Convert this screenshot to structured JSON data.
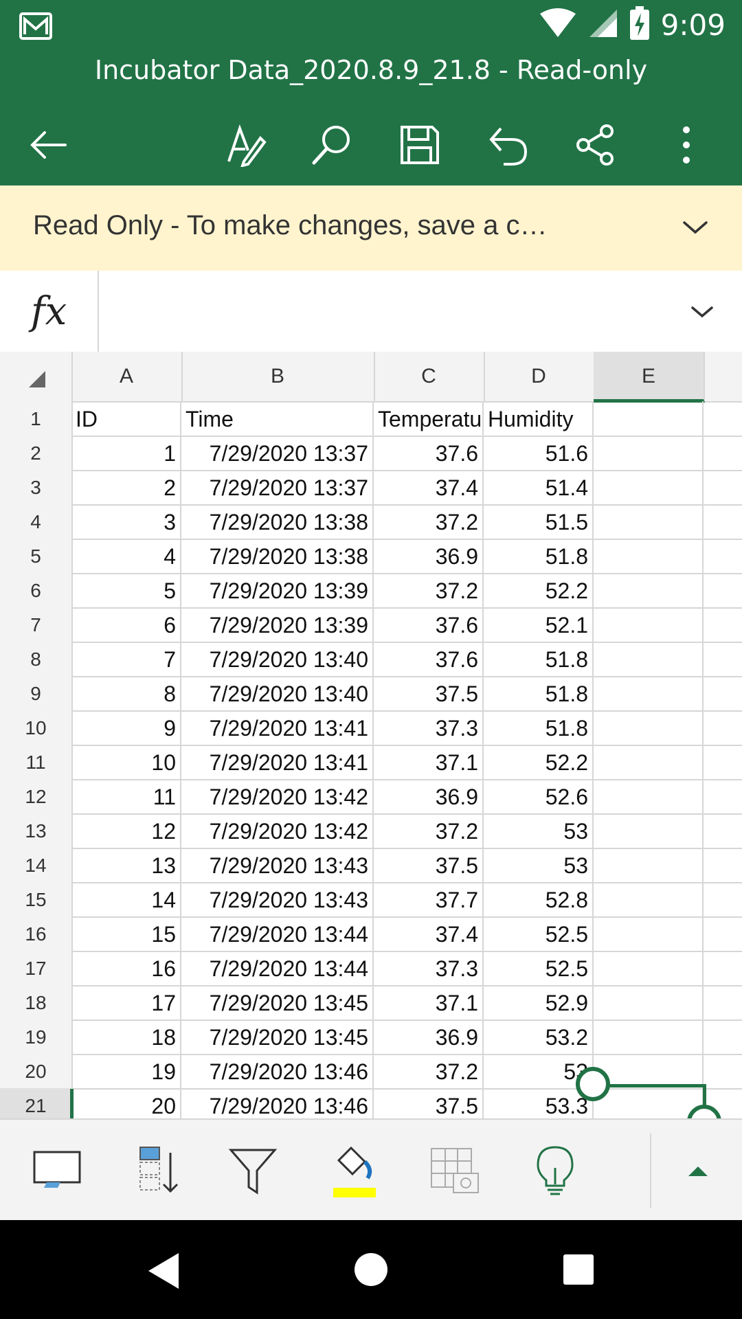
{
  "status_bar": {
    "time": "9:09",
    "icons": [
      "gmail-icon",
      "wifi-icon",
      "signal-icon",
      "battery-charging-icon"
    ]
  },
  "app_bar": {
    "title": "Incubator Data_2020.8.9_21.8 - Read-only",
    "actions": [
      "back-icon",
      "draw-icon",
      "search-icon",
      "save-icon",
      "undo-icon",
      "share-icon",
      "more-icon"
    ]
  },
  "banner": {
    "message": "Read Only - To make changes, save a c…"
  },
  "formula_bar": {
    "fx_label": "fx",
    "value": ""
  },
  "sheet": {
    "columns": [
      "A",
      "B",
      "C",
      "D",
      "E"
    ],
    "selected_column": "E",
    "selected_row": "21",
    "header_row": {
      "row": "1",
      "cells": [
        "ID",
        "Time",
        "Temperatu",
        "Humidity",
        ""
      ]
    },
    "rows": [
      {
        "row": "2",
        "id": "1",
        "time": "7/29/2020 13:37",
        "temp": "37.6",
        "hum": "51.6"
      },
      {
        "row": "3",
        "id": "2",
        "time": "7/29/2020 13:37",
        "temp": "37.4",
        "hum": "51.4"
      },
      {
        "row": "4",
        "id": "3",
        "time": "7/29/2020 13:38",
        "temp": "37.2",
        "hum": "51.5"
      },
      {
        "row": "5",
        "id": "4",
        "time": "7/29/2020 13:38",
        "temp": "36.9",
        "hum": "51.8"
      },
      {
        "row": "6",
        "id": "5",
        "time": "7/29/2020 13:39",
        "temp": "37.2",
        "hum": "52.2"
      },
      {
        "row": "7",
        "id": "6",
        "time": "7/29/2020 13:39",
        "temp": "37.6",
        "hum": "52.1"
      },
      {
        "row": "8",
        "id": "7",
        "time": "7/29/2020 13:40",
        "temp": "37.6",
        "hum": "51.8"
      },
      {
        "row": "9",
        "id": "8",
        "time": "7/29/2020 13:40",
        "temp": "37.5",
        "hum": "51.8"
      },
      {
        "row": "10",
        "id": "9",
        "time": "7/29/2020 13:41",
        "temp": "37.3",
        "hum": "51.8"
      },
      {
        "row": "11",
        "id": "10",
        "time": "7/29/2020 13:41",
        "temp": "37.1",
        "hum": "52.2"
      },
      {
        "row": "12",
        "id": "11",
        "time": "7/29/2020 13:42",
        "temp": "36.9",
        "hum": "52.6"
      },
      {
        "row": "13",
        "id": "12",
        "time": "7/29/2020 13:42",
        "temp": "37.2",
        "hum": "53"
      },
      {
        "row": "14",
        "id": "13",
        "time": "7/29/2020 13:43",
        "temp": "37.5",
        "hum": "53"
      },
      {
        "row": "15",
        "id": "14",
        "time": "7/29/2020 13:43",
        "temp": "37.7",
        "hum": "52.8"
      },
      {
        "row": "16",
        "id": "15",
        "time": "7/29/2020 13:44",
        "temp": "37.4",
        "hum": "52.5"
      },
      {
        "row": "17",
        "id": "16",
        "time": "7/29/2020 13:44",
        "temp": "37.3",
        "hum": "52.5"
      },
      {
        "row": "18",
        "id": "17",
        "time": "7/29/2020 13:45",
        "temp": "37.1",
        "hum": "52.9"
      },
      {
        "row": "19",
        "id": "18",
        "time": "7/29/2020 13:45",
        "temp": "36.9",
        "hum": "53.2"
      },
      {
        "row": "20",
        "id": "19",
        "time": "7/29/2020 13:46",
        "temp": "37.2",
        "hum": "53"
      },
      {
        "row": "21",
        "id": "20",
        "time": "7/29/2020 13:46",
        "temp": "37.5",
        "hum": "53.3"
      }
    ]
  },
  "bottom_bar": {
    "tools": [
      "card-view-icon",
      "sort-icon",
      "filter-icon",
      "fill-color-icon",
      "table-image-icon",
      "ideas-icon",
      "expand-up-icon"
    ],
    "accent": "#217346",
    "fill_swatch": "#FFFF00"
  },
  "colors": {
    "brand": "#217346",
    "banner_bg": "#FFF4CE"
  }
}
